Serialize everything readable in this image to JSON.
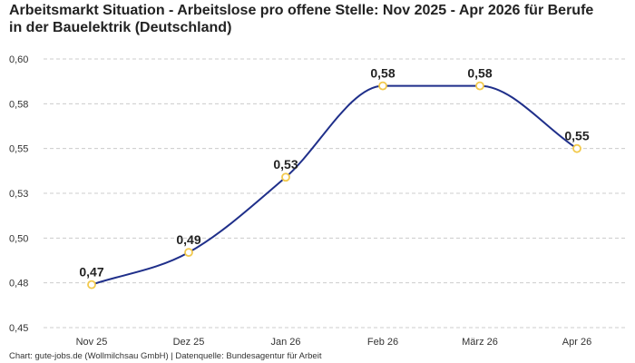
{
  "chart_data": {
    "type": "line",
    "title": "Arbeitsmarkt Situation - Arbeitslose pro offene Stelle: Nov 2025 - Apr 2026 für Berufe in der Bauelektrik (Deutschland)",
    "categories": [
      "Nov 25",
      "Dez 25",
      "Jan 26",
      "Feb 26",
      "März 26",
      "Apr 26"
    ],
    "series": [
      {
        "values": [
          0.474,
          0.492,
          0.534,
          0.585,
          0.585,
          0.55
        ],
        "labels": [
          "0,47",
          "0,49",
          "0,53",
          "0,58",
          "0,58",
          "0,55"
        ]
      }
    ],
    "yticks": [
      0.45,
      0.475,
      0.5,
      0.525,
      0.55,
      0.575,
      0.6
    ],
    "ytick_labels": [
      "0,45",
      "0,48",
      "0,50",
      "0,53",
      "0,55",
      "0,58",
      "0,60"
    ],
    "ylim": [
      0.45,
      0.6
    ],
    "xlabel": "",
    "ylabel": "",
    "grid": "horizontal-dashed",
    "legend": "none",
    "line_color": "#1f2f8a",
    "marker_color": "#f2c94c",
    "grid_color": "#cccccc"
  },
  "footer": {
    "source": "Chart: gute-jobs.de (Wollmilchsau GmbH) | Datenquelle: Bundesagentur für Arbeit"
  }
}
